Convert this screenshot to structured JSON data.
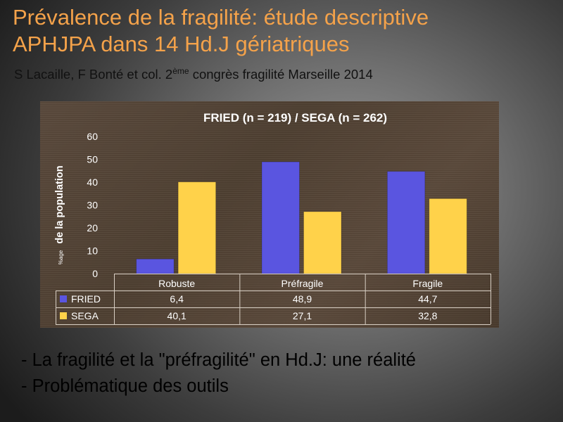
{
  "slide": {
    "title_line1": "Prévalence de la fragilité: étude descriptive",
    "title_line2": "APHJPA dans 14 Hd.J gériatriques",
    "subtitle_main": "S Lacaille, F Bonté et col. 2",
    "subtitle_sup": "ème",
    "subtitle_rest": " congrès fragilité Marseille 2014",
    "bullets": [
      "- La fragilité et la \"préfragilité\" en Hd.J: une réalité",
      "- Problématique des outils"
    ]
  },
  "colors": {
    "title": "#f4a24a",
    "fried": "#5a55e0",
    "sega": "#ffd24a"
  },
  "chart_data": {
    "type": "bar",
    "title": "FRIED (n = 219) / SEGA (n = 262)",
    "ylabel_small": "%age",
    "ylabel": "de la population",
    "ylim": [
      0,
      60
    ],
    "yticks": [
      0,
      10,
      20,
      30,
      40,
      50,
      60
    ],
    "categories": [
      "Robuste",
      "Préfragile",
      "Fragile"
    ],
    "series": [
      {
        "name": "FRIED",
        "values": [
          6.4,
          48.9,
          44.7
        ],
        "labels": [
          "6,4",
          "48,9",
          "44,7"
        ]
      },
      {
        "name": "SEGA",
        "values": [
          40.1,
          27.1,
          32.8
        ],
        "labels": [
          "40,1",
          "27,1",
          "32,8"
        ]
      }
    ],
    "legend": "data-table",
    "grid": false
  }
}
